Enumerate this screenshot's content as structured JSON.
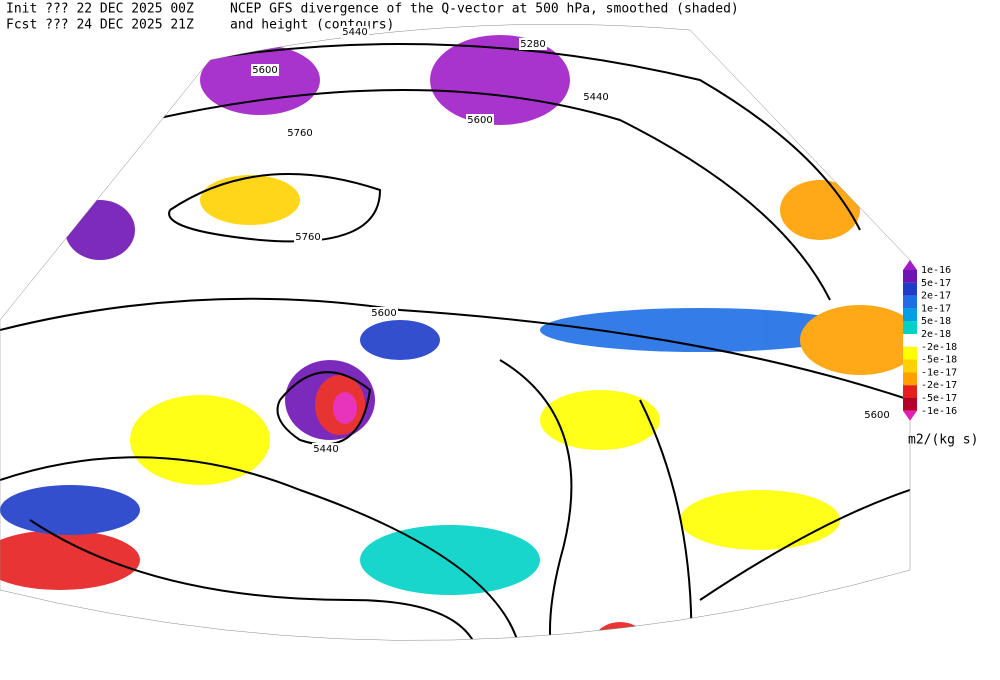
{
  "header": {
    "init": "Init  ??? 22 DEC 2025 00Z",
    "fcst": "Fcst ??? 24 DEC 2025 21Z",
    "title": "NCEP GFS divergence of the Q-vector at 500 hPa, smoothed (shaded)",
    "subtitle": "and height (contours)"
  },
  "colorbar": {
    "labels": [
      "1e-16",
      "5e-17",
      "2e-17",
      "1e-17",
      "5e-18",
      "2e-18",
      "-2e-18",
      "-5e-18",
      "-1e-17",
      "-2e-17",
      "-5e-17",
      "-1e-16"
    ],
    "colors": [
      "#a01ec8",
      "#6e14b4",
      "#1e3cc8",
      "#1e6ee6",
      "#00a0e6",
      "#00d2c8",
      "#ffffff",
      "#ffff00",
      "#ffd200",
      "#ffa000",
      "#e61e1e",
      "#b40028",
      "#e61eb4"
    ],
    "unit": "m2/(kg s)"
  },
  "contour_labels": [
    "5440",
    "5600",
    "5760",
    "5600",
    "5440",
    "5280",
    "5760",
    "5600",
    "5440",
    "5600"
  ]
}
